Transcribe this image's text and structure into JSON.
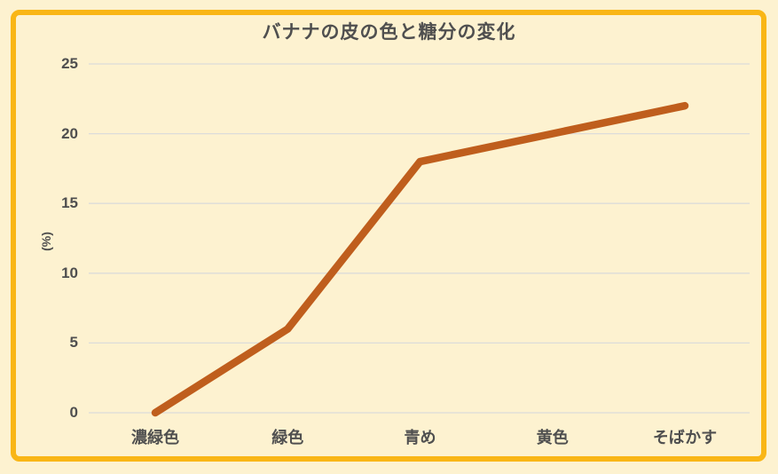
{
  "chart_data": {
    "type": "line",
    "title": "バナナの皮の色と糖分の変化",
    "categories": [
      "濃緑色",
      "緑色",
      "青め",
      "黄色",
      "そばかす"
    ],
    "values": [
      0,
      6,
      18,
      20,
      22
    ],
    "xlabel": "",
    "ylabel": "(%)",
    "ylim": [
      0,
      25
    ],
    "yticks": [
      0,
      5,
      10,
      15,
      20,
      25
    ],
    "grid": true,
    "legend_position": "none",
    "colors": {
      "line": "#bf5e1d",
      "grid": "#dcdcda",
      "text": "#4f4f4f",
      "background": "#fdf2d0",
      "border": "#f9b616"
    }
  }
}
